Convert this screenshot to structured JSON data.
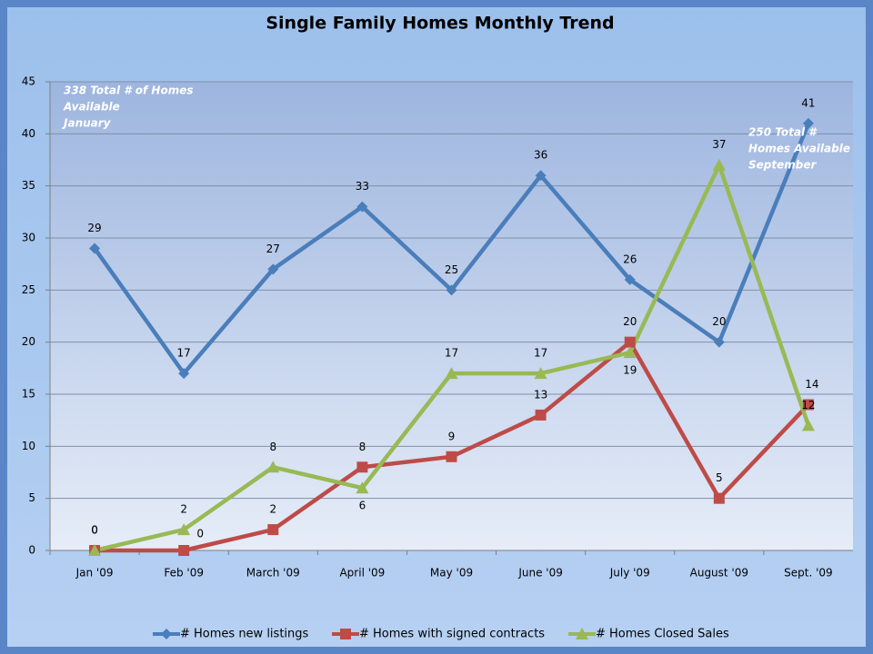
{
  "chart_data": {
    "type": "line",
    "title": "Single Family Homes Monthly Trend",
    "categories": [
      "Jan '09",
      "Feb '09",
      "March '09",
      "April '09",
      "May '09",
      "June '09",
      "July '09",
      "August '09",
      "Sept. '09"
    ],
    "series": [
      {
        "name": "# Homes new listings",
        "color": "#4a7ebb",
        "marker": "diamond",
        "values": [
          29,
          17,
          27,
          33,
          25,
          36,
          26,
          20,
          41
        ]
      },
      {
        "name": "# Homes with signed contracts",
        "color": "#be4b48",
        "marker": "square",
        "values": [
          0,
          0,
          2,
          8,
          9,
          13,
          20,
          5,
          14
        ]
      },
      {
        "name": "# Homes Closed Sales",
        "color": "#98b954",
        "marker": "triangle",
        "values": [
          0,
          2,
          8,
          6,
          17,
          17,
          19,
          37,
          12
        ]
      }
    ],
    "ylim": [
      0,
      45
    ],
    "yticks": [
      0,
      5,
      10,
      15,
      20,
      25,
      30,
      35,
      40,
      45
    ],
    "grid": true,
    "legend": "bottom",
    "annotations": [
      [
        "338 Total # of Homes",
        "Available",
        "January"
      ],
      [
        "250 Total #",
        "Homes Available",
        "September"
      ]
    ]
  }
}
